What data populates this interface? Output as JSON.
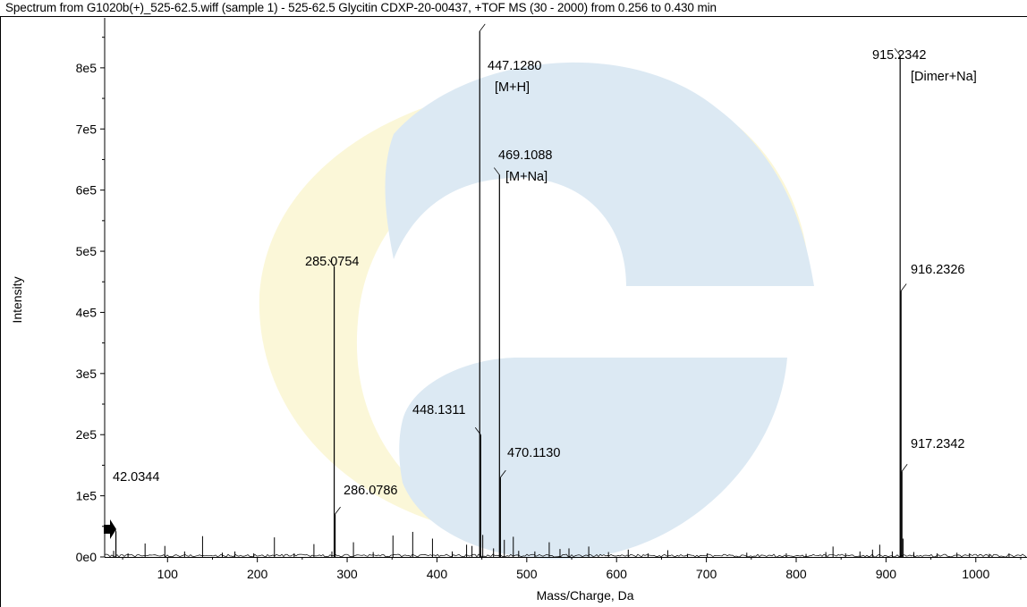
{
  "spectrum_title": "Spectrum from G1020b(+)_525-62.5.wiff (sample 1) - 525-62.5 Glycitin CDXP-20-00437, +TOF MS (30 - 2000) from 0.256 to 0.430 min",
  "colors": {
    "background": "#ffffff",
    "spectrum_line": "#000000",
    "watermark_blue": "#dce9f3",
    "watermark_yellow": "#fbf7d8"
  },
  "watermark": {
    "icon": "circular-swirl-logo"
  },
  "pointer": {
    "icon": "right-arrow-icon"
  },
  "chart_data": {
    "type": "line",
    "subtype": "mass-spectrum-sticks",
    "xlabel": "Mass/Charge, Da",
    "ylabel": "Intensity",
    "xlim": [
      30,
      1057
    ],
    "ylim": [
      0,
      870000
    ],
    "x_ticks": [
      100,
      200,
      300,
      400,
      500,
      600,
      700,
      800,
      900,
      1000
    ],
    "y_ticks": [
      {
        "value": 0,
        "label": "0e0"
      },
      {
        "value": 100000,
        "label": "1e5"
      },
      {
        "value": 200000,
        "label": "2e5"
      },
      {
        "value": 300000,
        "label": "3e5"
      },
      {
        "value": 400000,
        "label": "4e5"
      },
      {
        "value": 500000,
        "label": "5e5"
      },
      {
        "value": 600000,
        "label": "6e5"
      },
      {
        "value": 700000,
        "label": "7e5"
      },
      {
        "value": 800000,
        "label": "8e5"
      }
    ],
    "grid": false,
    "legend": "none",
    "peaks": [
      {
        "mz": 42.0344,
        "intensity": 42000,
        "label": "42.0344"
      },
      {
        "mz": 285.0754,
        "intensity": 475000,
        "label": "285.0754"
      },
      {
        "mz": 286.0786,
        "intensity": 70000,
        "label": "286.0786"
      },
      {
        "mz": 447.128,
        "intensity": 860000,
        "label": "447.1280",
        "annotation": "[M+H]"
      },
      {
        "mz": 448.1311,
        "intensity": 200000,
        "label": "448.1311"
      },
      {
        "mz": 469.1088,
        "intensity": 625000,
        "label": "469.1088",
        "annotation": "[M+Na]"
      },
      {
        "mz": 470.113,
        "intensity": 130000,
        "label": "470.1130"
      },
      {
        "mz": 915.2342,
        "intensity": 820000,
        "label": "915.2342",
        "annotation": "[Dimer+Na]"
      },
      {
        "mz": 916.2326,
        "intensity": 435000,
        "label": "916.2326"
      },
      {
        "mz": 917.2342,
        "intensity": 140000,
        "label": "917.2342"
      }
    ],
    "minor_peaks": [
      {
        "mz": 40,
        "intensity": 10000
      },
      {
        "mz": 56,
        "intensity": 6000
      },
      {
        "mz": 75,
        "intensity": 22000
      },
      {
        "mz": 97,
        "intensity": 18000
      },
      {
        "mz": 119,
        "intensity": 9000
      },
      {
        "mz": 139,
        "intensity": 34000
      },
      {
        "mz": 161,
        "intensity": 7000
      },
      {
        "mz": 175,
        "intensity": 9000
      },
      {
        "mz": 196,
        "intensity": 6000
      },
      {
        "mz": 219,
        "intensity": 32000
      },
      {
        "mz": 241,
        "intensity": 6000
      },
      {
        "mz": 263,
        "intensity": 21000
      },
      {
        "mz": 283,
        "intensity": 9000
      },
      {
        "mz": 307,
        "intensity": 24000
      },
      {
        "mz": 329,
        "intensity": 8000
      },
      {
        "mz": 351,
        "intensity": 35000
      },
      {
        "mz": 373,
        "intensity": 41000
      },
      {
        "mz": 395,
        "intensity": 30000
      },
      {
        "mz": 417,
        "intensity": 9000
      },
      {
        "mz": 433,
        "intensity": 20000
      },
      {
        "mz": 439,
        "intensity": 18000
      },
      {
        "mz": 451,
        "intensity": 36000
      },
      {
        "mz": 463,
        "intensity": 14000
      },
      {
        "mz": 475,
        "intensity": 28000
      },
      {
        "mz": 485,
        "intensity": 33000
      },
      {
        "mz": 491,
        "intensity": 10000
      },
      {
        "mz": 509,
        "intensity": 9000
      },
      {
        "mz": 525,
        "intensity": 24000
      },
      {
        "mz": 537,
        "intensity": 13000
      },
      {
        "mz": 547,
        "intensity": 14000
      },
      {
        "mz": 569,
        "intensity": 17000
      },
      {
        "mz": 591,
        "intensity": 8000
      },
      {
        "mz": 613,
        "intensity": 12000
      },
      {
        "mz": 635,
        "intensity": 6000
      },
      {
        "mz": 657,
        "intensity": 11000
      },
      {
        "mz": 679,
        "intensity": 5000
      },
      {
        "mz": 701,
        "intensity": 6000
      },
      {
        "mz": 745,
        "intensity": 7000
      },
      {
        "mz": 789,
        "intensity": 6000
      },
      {
        "mz": 811,
        "intensity": 5000
      },
      {
        "mz": 833,
        "intensity": 8000
      },
      {
        "mz": 841,
        "intensity": 17000
      },
      {
        "mz": 855,
        "intensity": 6000
      },
      {
        "mz": 871,
        "intensity": 9000
      },
      {
        "mz": 885,
        "intensity": 12000
      },
      {
        "mz": 893,
        "intensity": 20000
      },
      {
        "mz": 907,
        "intensity": 9000
      },
      {
        "mz": 919,
        "intensity": 30000
      },
      {
        "mz": 931,
        "intensity": 8000
      },
      {
        "mz": 957,
        "intensity": 6000
      },
      {
        "mz": 979,
        "intensity": 7000
      },
      {
        "mz": 993,
        "intensity": 6000
      },
      {
        "mz": 1015,
        "intensity": 5000
      },
      {
        "mz": 1037,
        "intensity": 6000
      }
    ]
  }
}
